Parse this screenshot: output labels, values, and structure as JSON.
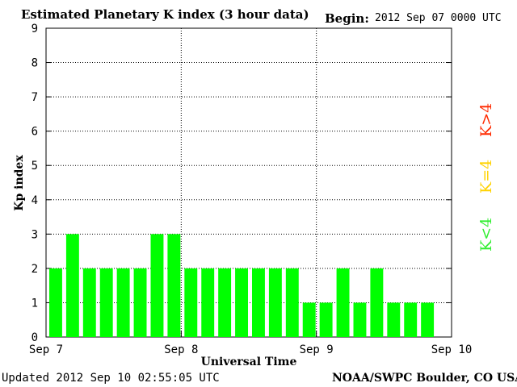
{
  "header": {
    "title": "Estimated Planetary K index (3 hour data)",
    "begin_label": "Begin:",
    "begin_value": "2012 Sep 07 0000 UTC"
  },
  "footer": {
    "updated": "Updated 2012 Sep 10 02:55:05 UTC",
    "source": "NOAA/SWPC Boulder, CO USA"
  },
  "legend": {
    "high": "K>4",
    "mid": "K=4",
    "low": "K<4",
    "colors": {
      "high": "#ff2a00",
      "mid": "#ffd200",
      "low": "#33ee33"
    }
  },
  "chart_data": {
    "type": "bar",
    "title": "Estimated Planetary K index (3 hour data)",
    "xlabel": "Universal Time",
    "ylabel": "Kp index",
    "ylim": [
      0,
      9
    ],
    "yticks": [
      "0",
      "1",
      "2",
      "3",
      "4",
      "5",
      "6",
      "7",
      "8",
      "9"
    ],
    "xtick_labels": [
      "Sep 7",
      "Sep 8",
      "Sep 9",
      "Sep 10"
    ],
    "grid": true,
    "bar_color": "#00ff00",
    "interval_hours": 3,
    "values": [
      2,
      3,
      2,
      2,
      2,
      2,
      3,
      3,
      2,
      2,
      2,
      2,
      2,
      2,
      2,
      1,
      1,
      2,
      1,
      2,
      1,
      1,
      1
    ]
  }
}
